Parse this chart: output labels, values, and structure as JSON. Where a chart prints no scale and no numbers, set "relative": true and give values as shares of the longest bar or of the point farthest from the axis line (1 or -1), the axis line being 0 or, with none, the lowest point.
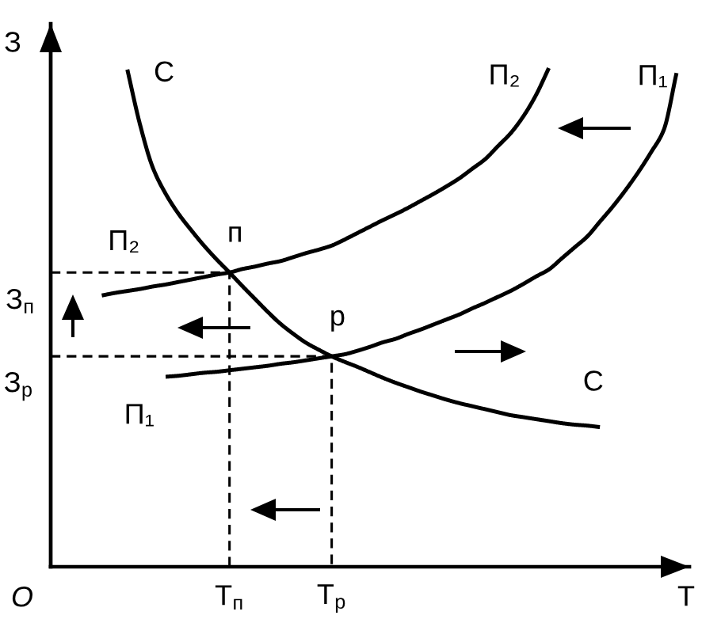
{
  "chart_data": {
    "type": "line",
    "relative": true,
    "xlabel": "Т",
    "ylabel": "З",
    "line_style": "solid",
    "categories": [
      null,
      null,
      null,
      null,
      null,
      null,
      null,
      null,
      null,
      null,
      null,
      null,
      null,
      null,
      "Т$_{п}$",
      null,
      null,
      null,
      null,
      null,
      null,
      null,
      "Т$_{р}$",
      null,
      null,
      null,
      null,
      null,
      null,
      null,
      null,
      null,
      null,
      null,
      null,
      null,
      null,
      null,
      null,
      null,
      null,
      null,
      null,
      null,
      null,
      null,
      null,
      null,
      null,
      null,
      null
    ],
    "series": [
      {
        "name": "С",
        "color": "#000000",
        "values": [
          null,
          null,
          null,
          null,
          null,
          null,
          0.997,
          0.886,
          0.8,
          0.748,
          0.708,
          0.675,
          0.644,
          0.616,
          0.59,
          0.563,
          0.537,
          0.511,
          0.487,
          0.467,
          0.449,
          0.435,
          0.422,
          0.411,
          0.401,
          0.39,
          0.379,
          0.369,
          0.36,
          0.351,
          0.343,
          0.335,
          0.328,
          0.322,
          0.316,
          0.31,
          0.304,
          0.3,
          0.296,
          0.292,
          0.288,
          0.285,
          0.283,
          0.28,
          null,
          null,
          null,
          null,
          null,
          null,
          null
        ]
      },
      {
        "name": "П₂",
        "color": "#000000",
        "values": [
          null,
          null,
          null,
          null,
          0.544,
          0.549,
          0.553,
          0.557,
          0.562,
          0.566,
          0.571,
          0.576,
          0.581,
          0.586,
          0.59,
          0.597,
          0.602,
          0.608,
          0.613,
          0.621,
          0.629,
          0.636,
          0.644,
          0.656,
          0.669,
          0.682,
          0.695,
          0.707,
          0.72,
          0.734,
          0.748,
          0.763,
          0.779,
          0.798,
          0.817,
          0.843,
          0.869,
          0.903,
          0.946,
          1.0,
          null,
          null,
          null,
          null,
          null,
          null,
          null,
          null,
          null,
          null,
          null
        ]
      },
      {
        "name": "П₁",
        "color": "#000000",
        "values": [
          null,
          null,
          null,
          null,
          null,
          null,
          null,
          null,
          null,
          0.381,
          0.383,
          0.386,
          0.389,
          0.391,
          0.394,
          0.397,
          0.4,
          0.403,
          0.407,
          0.41,
          0.414,
          0.418,
          0.422,
          0.426,
          0.433,
          0.441,
          0.45,
          0.457,
          0.467,
          0.476,
          0.486,
          0.496,
          0.506,
          0.518,
          0.529,
          0.541,
          0.553,
          0.567,
          0.582,
          0.596,
          0.618,
          0.64,
          0.662,
          0.692,
          0.722,
          0.755,
          0.791,
          0.831,
          0.876,
          0.99,
          null
        ]
      },
      {
        "type": "step",
        "color": "#000000",
        "line_style": "dashed",
        "values": [
          0.59,
          0.59,
          0.59,
          0.59,
          0.59,
          0.59,
          0.59,
          0.59,
          0.59,
          0.59,
          0.59,
          0.59,
          0.59,
          0.59,
          0,
          null,
          null,
          null,
          null,
          null,
          null,
          null,
          null,
          null,
          null,
          null,
          null,
          null,
          null,
          null,
          null,
          null,
          null,
          null,
          null,
          null,
          null,
          null,
          null,
          null,
          null,
          null,
          null,
          null,
          null,
          null,
          null,
          null,
          null,
          null,
          null
        ]
      },
      {
        "type": "step",
        "color": "#000000",
        "line_style": "dashed",
        "values": [
          0.422,
          0.422,
          0.422,
          0.422,
          0.422,
          0.422,
          0.422,
          0.422,
          0.422,
          0.422,
          0.422,
          0.422,
          0.422,
          0.422,
          0.422,
          0.422,
          0.422,
          0.422,
          0.422,
          0.422,
          0.422,
          0.422,
          0,
          null,
          null,
          null,
          null,
          null,
          null,
          null,
          null,
          null,
          null,
          null,
          null,
          null,
          null,
          null,
          null,
          null,
          null,
          null,
          null,
          null,
          null,
          null,
          null,
          null,
          null,
          null,
          null
        ]
      }
    ],
    "annotations": [
      {
        "text": "п",
        "x": "Т$_{п}$",
        "y": 0.59
      },
      {
        "text": "р",
        "x": "Т$_{р}$",
        "y": 0.422
      },
      "З$_{п}$",
      "З$_{р}$",
      "O"
    ]
  }
}
